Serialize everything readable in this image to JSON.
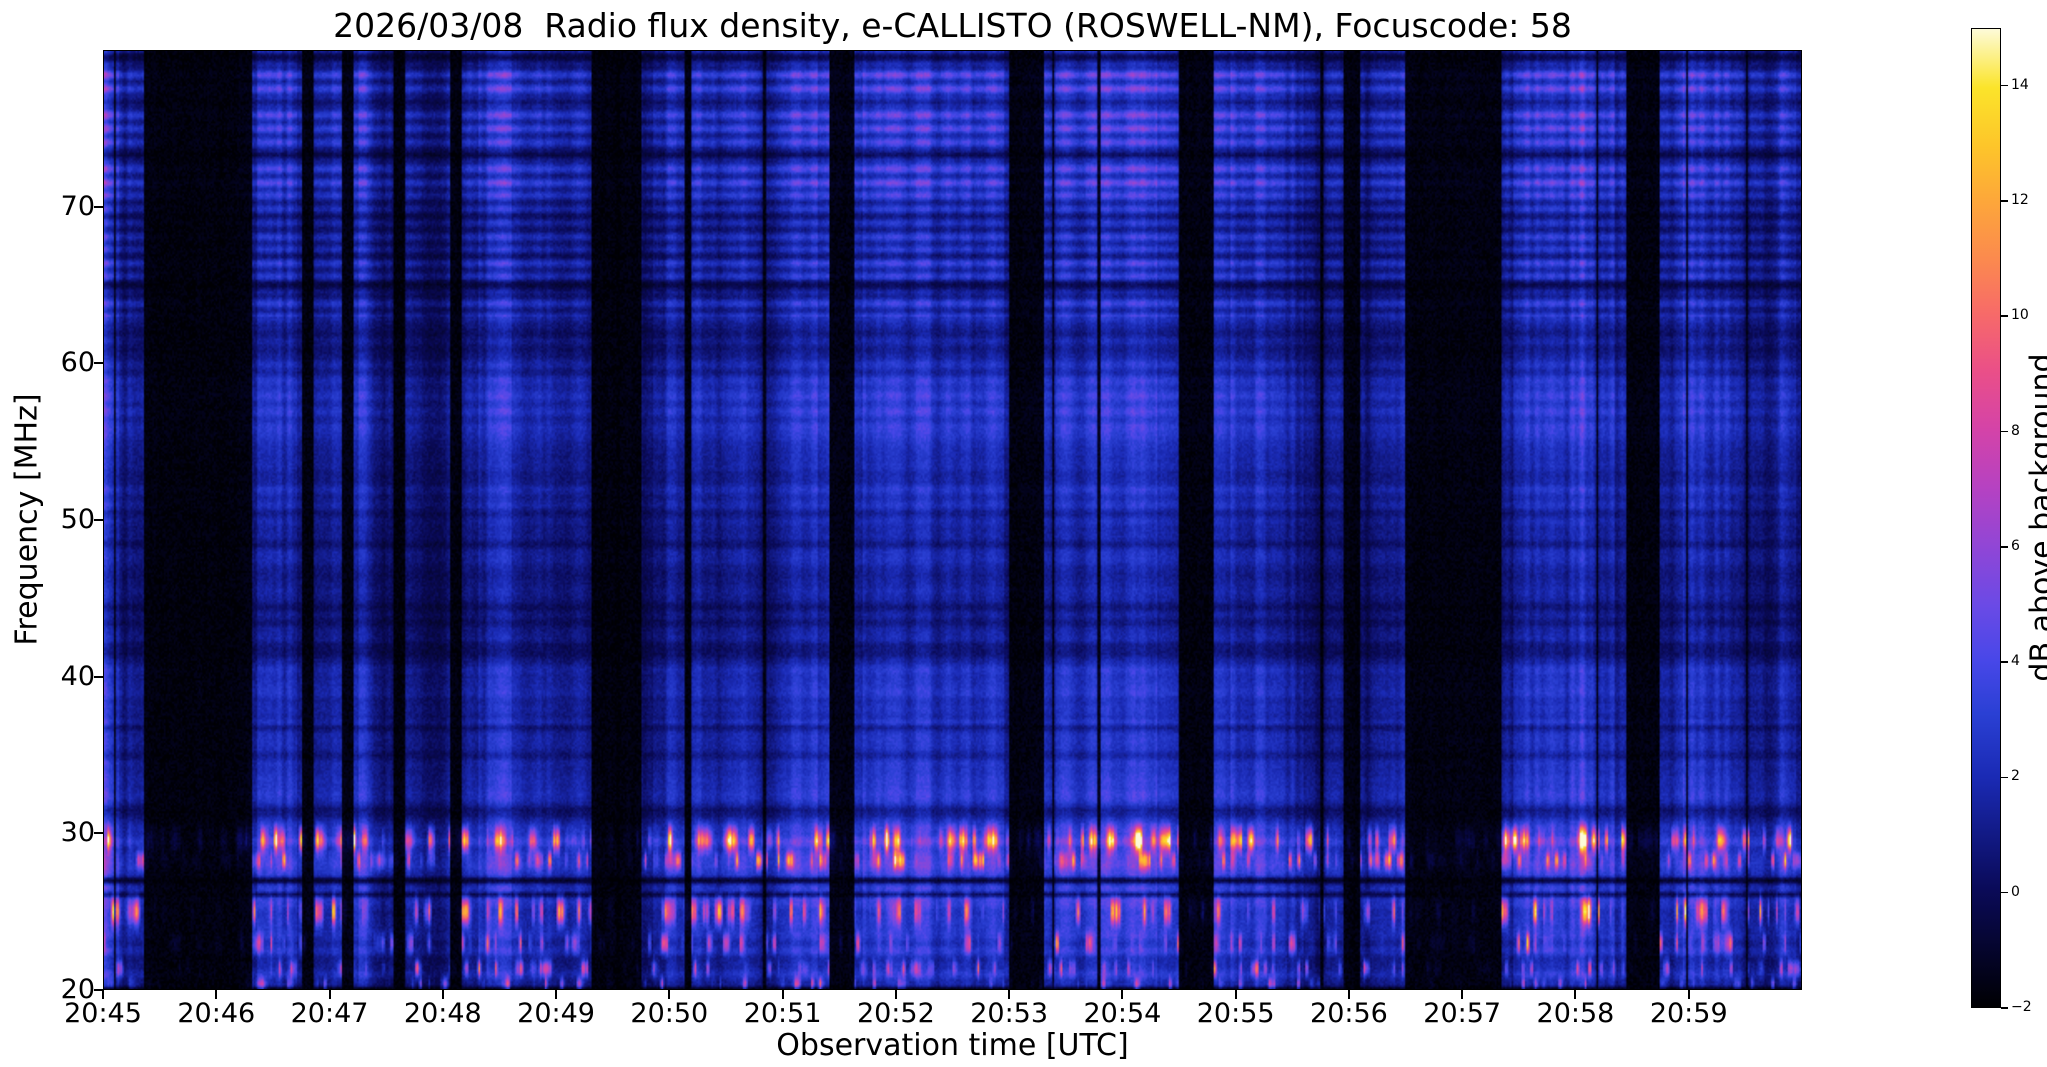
{
  "chart_data": {
    "type": "heatmap",
    "title": "2026/03/08  Radio flux density, e-CALLISTO (ROSWELL-NM), Focuscode: 58",
    "xlabel": "Observation time [UTC]",
    "ylabel": "Frequency [MHz]",
    "colorbar_label": "dB above background",
    "x_tick_labels": [
      "20:45",
      "20:46",
      "20:47",
      "20:48",
      "20:49",
      "20:50",
      "20:51",
      "20:52",
      "20:53",
      "20:54",
      "20:55",
      "20:56",
      "20:57",
      "20:58",
      "20:59"
    ],
    "x_range_minutes": [
      0,
      15
    ],
    "y_ticks": [
      20,
      30,
      40,
      50,
      60,
      70
    ],
    "y_range_mhz": [
      20,
      80
    ],
    "colorbar_ticks": [
      -2,
      0,
      2,
      4,
      6,
      8,
      10,
      12,
      14
    ],
    "value_range_db": [
      -2,
      15
    ],
    "grid": false,
    "legend": "none",
    "colormap": {
      "name": "callisto-dark-blue-magenta-yellow",
      "stops": [
        [
          0.0,
          "#000003"
        ],
        [
          0.12,
          "#0a0a58"
        ],
        [
          0.235,
          "#1a2ab4"
        ],
        [
          0.3,
          "#2a40d4"
        ],
        [
          0.353,
          "#4747e8"
        ],
        [
          0.41,
          "#6a4ae6"
        ],
        [
          0.47,
          "#9046d6"
        ],
        [
          0.53,
          "#b542c2"
        ],
        [
          0.59,
          "#d443a8"
        ],
        [
          0.65,
          "#ea4f88"
        ],
        [
          0.71,
          "#f76b68"
        ],
        [
          0.765,
          "#fb8a4e"
        ],
        [
          0.824,
          "#fda73a"
        ],
        [
          0.88,
          "#fdc52a"
        ],
        [
          0.94,
          "#fbe42a"
        ],
        [
          1.0,
          "#fdfbd8"
        ]
      ]
    },
    "render": {
      "seed": 58,
      "columns": 1020,
      "rows": 480,
      "background_gain_db": 6.2,
      "dark_time_intervals_min": [
        [
          0.35,
          1.3
        ],
        [
          1.75,
          1.85
        ],
        [
          2.1,
          2.2
        ],
        [
          2.55,
          2.65
        ],
        [
          3.05,
          3.15
        ],
        [
          4.3,
          4.75
        ],
        [
          5.12,
          5.18
        ],
        [
          6.4,
          6.62
        ],
        [
          8.0,
          8.3
        ],
        [
          9.5,
          9.8
        ],
        [
          10.95,
          11.1
        ],
        [
          11.5,
          12.35
        ],
        [
          13.45,
          13.75
        ]
      ],
      "bright_time_intervals_min": [
        [
          0.0,
          0.12
        ],
        [
          1.35,
          1.7
        ],
        [
          2.25,
          2.5
        ],
        [
          3.3,
          3.6
        ],
        [
          4.85,
          6.3
        ],
        [
          6.7,
          7.95
        ],
        [
          8.4,
          9.3
        ],
        [
          9.95,
          10.6
        ],
        [
          12.45,
          13.35
        ],
        [
          13.95,
          14.95
        ]
      ],
      "emission_bands": [
        {
          "freq_mhz": 29.6,
          "halfwidth_mhz": 0.75,
          "peak_db": 13,
          "duty": 0.5
        },
        {
          "freq_mhz": 28.3,
          "halfwidth_mhz": 0.55,
          "peak_db": 9,
          "duty": 0.45
        },
        {
          "freq_mhz": 25.0,
          "halfwidth_mhz": 0.8,
          "peak_db": 12,
          "duty": 0.45
        },
        {
          "freq_mhz": 23.0,
          "halfwidth_mhz": 0.6,
          "peak_db": 9,
          "duty": 0.4
        },
        {
          "freq_mhz": 21.4,
          "halfwidth_mhz": 0.5,
          "peak_db": 8,
          "duty": 0.4
        },
        {
          "freq_mhz": 20.4,
          "halfwidth_mhz": 0.4,
          "peak_db": 7,
          "duty": 0.35
        }
      ],
      "dark_freq_lines": [
        {
          "freq_mhz": 27.0,
          "halfwidth_mhz": 0.25,
          "dip": 0.22
        },
        {
          "freq_mhz": 26.1,
          "halfwidth_mhz": 0.2,
          "dip": 0.4
        },
        {
          "freq_mhz": 31.3,
          "halfwidth_mhz": 0.7,
          "dip": 0.55
        },
        {
          "freq_mhz": 36.8,
          "halfwidth_mhz": 0.25,
          "dip": 0.65
        },
        {
          "freq_mhz": 65.0,
          "halfwidth_mhz": 0.45,
          "dip": 0.55
        },
        {
          "freq_mhz": 73.4,
          "halfwidth_mhz": 0.3,
          "dip": 0.35
        },
        {
          "freq_mhz": 76.8,
          "halfwidth_mhz": 0.25,
          "dip": 0.5
        },
        {
          "freq_mhz": 79.6,
          "halfwidth_mhz": 0.4,
          "dip": 0.4
        },
        {
          "freq_mhz": 20.1,
          "halfwidth_mhz": 0.15,
          "dip": 0.2
        }
      ]
    }
  }
}
